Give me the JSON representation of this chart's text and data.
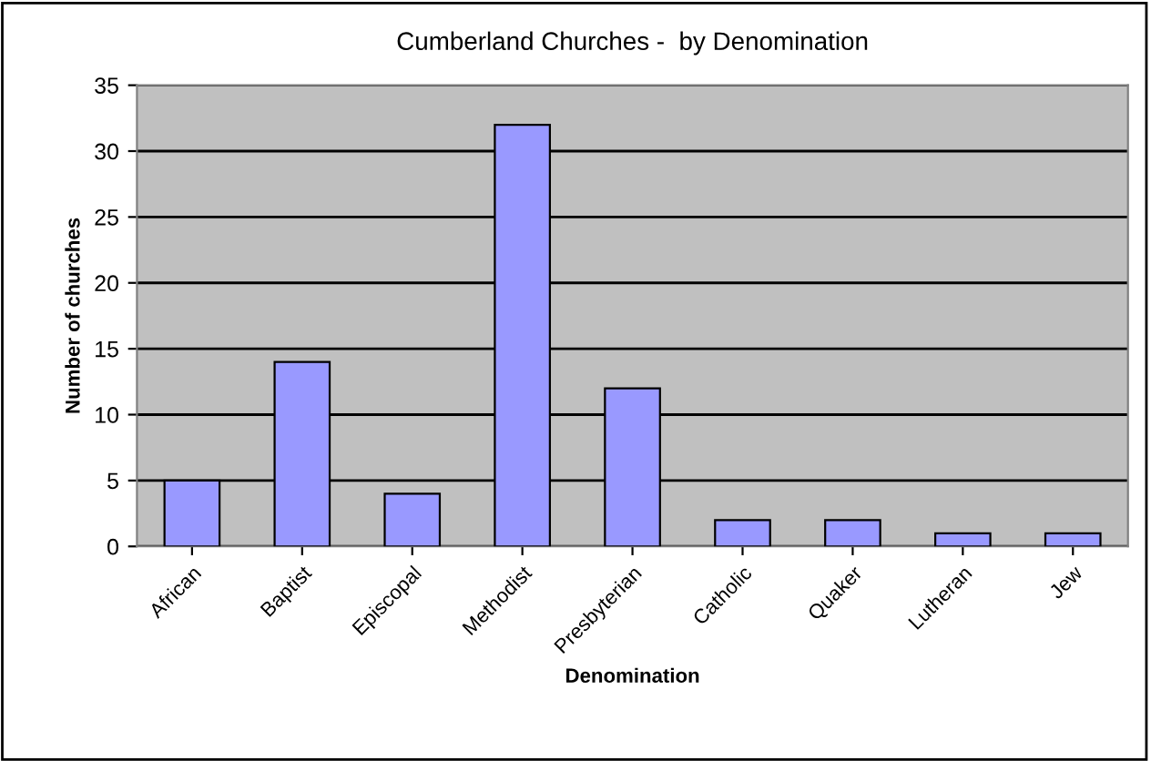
{
  "chart_data": {
    "type": "bar",
    "title": "Cumberland Churches -  by Denomination",
    "xlabel": "Denomination",
    "ylabel": "Number of churches",
    "categories": [
      "African",
      "Baptist",
      "Episcopal",
      "Methodist",
      "Presbyterian",
      "Catholic",
      "Quaker",
      "Lutheran",
      "Jew"
    ],
    "values": [
      5,
      14,
      4,
      32,
      12,
      2,
      2,
      1,
      1
    ],
    "color": "#9999ff",
    "ylim": [
      0,
      35
    ],
    "yticks": [
      0,
      5,
      10,
      15,
      20,
      25,
      30,
      35
    ],
    "grid": "y",
    "legend": false
  }
}
